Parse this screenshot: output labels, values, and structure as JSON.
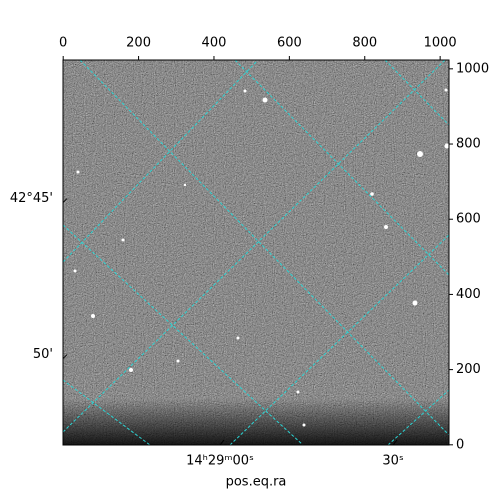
{
  "chart_data": {
    "type": "image",
    "xlabel": "pos.eq.ra",
    "xlim": [
      -0.5,
      1023.5
    ],
    "ylim": [
      -0.5,
      1023.5
    ],
    "xticks": [
      0,
      200,
      400,
      600,
      800,
      1000
    ],
    "yticks": [
      0,
      200,
      400,
      600,
      800,
      1000
    ],
    "world_xticks": [
      {
        "value": 416,
        "label": "14ʰ29ᵐ00ˢ"
      },
      {
        "value": 875,
        "label": "30ˢ"
      }
    ],
    "world_yticks": [
      {
        "value": 655,
        "label": "42°45'"
      },
      {
        "value": 240,
        "label": "50'"
      }
    ]
  }
}
